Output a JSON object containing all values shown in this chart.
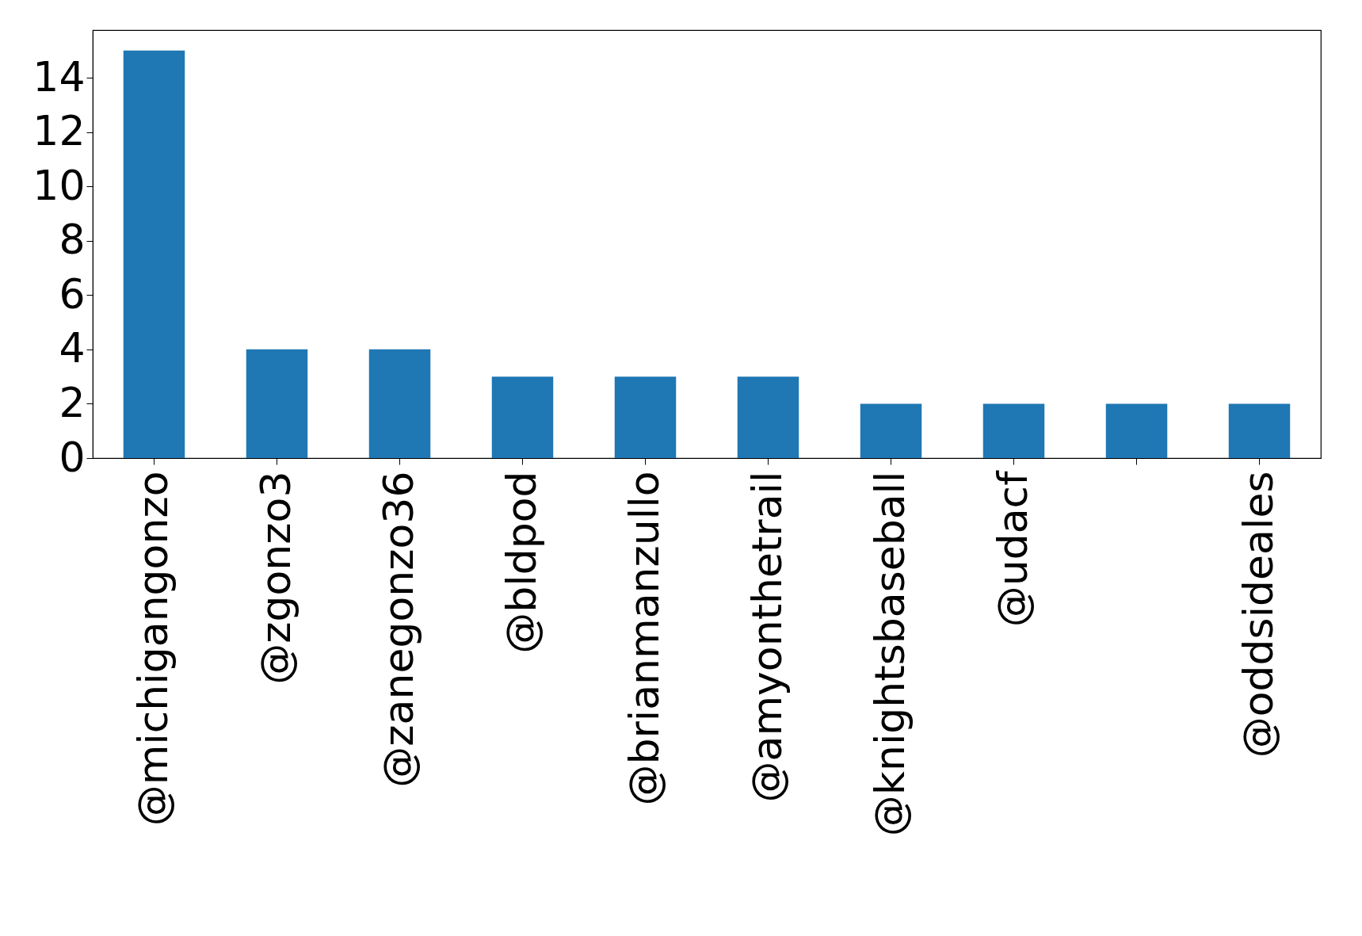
{
  "chart_data": {
    "type": "bar",
    "categories": [
      "@michigangonzo",
      "@zgonzo3",
      "@zanegonzo36",
      "@bldpod",
      "@brianmanzullo",
      "@amyonthetrail",
      "@knightsbaseball",
      "@udacf",
      null,
      "@oddsideales"
    ],
    "values": [
      15,
      4,
      4,
      3,
      3,
      3,
      2,
      2,
      2,
      2
    ],
    "color": "#1f77b4",
    "ylim": [
      0,
      15.75
    ],
    "yticks": [
      0,
      2,
      4,
      6,
      8,
      10,
      12,
      14
    ],
    "grid": false
  }
}
